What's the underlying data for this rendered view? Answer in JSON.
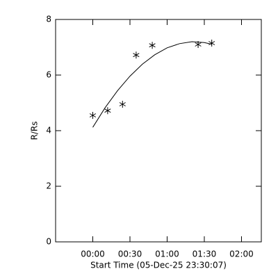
{
  "chart_data": {
    "type": "scatter",
    "xlabel": "Start Time (05-Dec-25 23:30:07)",
    "ylabel": "R/Rs",
    "xlim": [
      -30,
      136
    ],
    "ylim": [
      0,
      8
    ],
    "xticks": [
      {
        "value": 0,
        "label": "00:00"
      },
      {
        "value": 30,
        "label": "00:30"
      },
      {
        "value": 60,
        "label": "01:00"
      },
      {
        "value": 90,
        "label": "01:30"
      },
      {
        "value": 120,
        "label": "02:00"
      }
    ],
    "yticks": [
      0,
      2,
      4,
      6,
      8
    ],
    "series": [
      {
        "color": "#000000",
        "marker": "asterisk",
        "x": [
          0,
          12,
          24,
          35,
          48,
          85,
          96
        ],
        "values": [
          4.55,
          4.72,
          4.95,
          6.72,
          7.07,
          7.1,
          7.15
        ]
      },
      {
        "color": "#000000",
        "line": true,
        "x": [
          0,
          10,
          20,
          30,
          40,
          50,
          60,
          70,
          80,
          90,
          96
        ],
        "values": [
          4.12,
          4.83,
          5.44,
          5.96,
          6.39,
          6.73,
          6.98,
          7.13,
          7.2,
          7.17,
          7.11
        ]
      }
    ]
  }
}
